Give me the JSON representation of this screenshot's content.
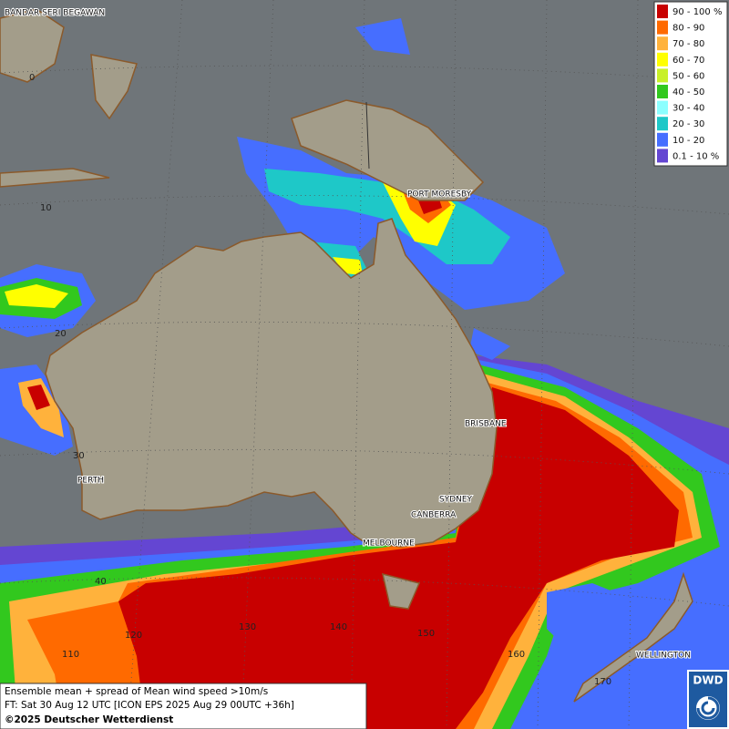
{
  "map": {
    "cities": [
      {
        "label": "BANDAR SERI BEGAWAN"
      },
      {
        "label": "PORT MORESBY"
      },
      {
        "label": "BRISBANE"
      },
      {
        "label": "PERTH"
      },
      {
        "label": "SYDNEY"
      },
      {
        "label": "CANBERRA"
      },
      {
        "label": "MELBOURNE"
      },
      {
        "label": "WELLINGTON"
      }
    ],
    "grid_labels": [
      {
        "label": "0"
      },
      {
        "label": "10"
      },
      {
        "label": "20"
      },
      {
        "label": "30"
      },
      {
        "label": "40"
      },
      {
        "label": "110"
      },
      {
        "label": "120"
      },
      {
        "label": "130"
      },
      {
        "label": "140"
      },
      {
        "label": "150"
      },
      {
        "label": "160"
      },
      {
        "label": "170"
      }
    ]
  },
  "legend": {
    "items": [
      {
        "label": "90 - 100 %",
        "color": "#c80000"
      },
      {
        "label": "80 - 90",
        "color": "#ff6a00"
      },
      {
        "label": "70 - 80",
        "color": "#ffb23c"
      },
      {
        "label": "60 - 70",
        "color": "#ffff00"
      },
      {
        "label": "50 - 60",
        "color": "#c8f028"
      },
      {
        "label": "40 - 50",
        "color": "#32c81e"
      },
      {
        "label": "30 - 40",
        "color": "#8cffff"
      },
      {
        "label": "20 - 30",
        "color": "#1ec8c8"
      },
      {
        "label": "10 - 20",
        "color": "#466eff"
      },
      {
        "label": "0.1 - 10 %",
        "color": "#6446d2"
      }
    ]
  },
  "caption": {
    "line1": "Ensemble mean + spread of Mean wind speed >10m/s",
    "line2": "FT: Sat 30 Aug 12 UTC [ICON EPS 2025 Aug 29 00UTC +36h]",
    "line3": "©2025 Deutscher Wetterdienst"
  },
  "logo": {
    "text": "DWD"
  }
}
